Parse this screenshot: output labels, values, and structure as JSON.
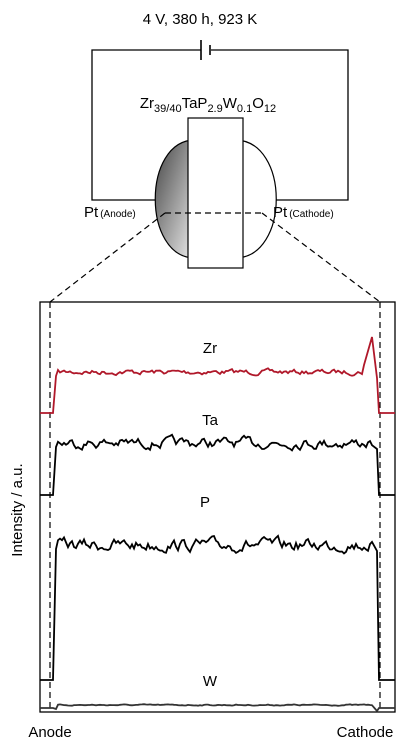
{
  "header": {
    "title": "4 V, 380 h, 923 K"
  },
  "formula": [
    {
      "text": "Zr",
      "sub": "39/40"
    },
    {
      "text": "TaP",
      "sub": "2.9"
    },
    {
      "text": "W",
      "sub": "0.1"
    },
    {
      "text": "O",
      "sub": "12"
    }
  ],
  "electrodes": {
    "anode": {
      "label": "Pt",
      "sub": "(Anode)"
    },
    "cathode": {
      "label": "Pt",
      "sub": "(Cathode)"
    }
  },
  "plot": {
    "y_label": "Intensity / a.u.",
    "traces": [
      {
        "label": "Zr",
        "color": "#b0182a"
      },
      {
        "label": "Ta",
        "color": "#000000"
      },
      {
        "label": "P",
        "color": "#000000"
      },
      {
        "label": "W",
        "color": "#333333"
      }
    ],
    "x_labels": [
      "Anode",
      "Cathode"
    ]
  }
}
